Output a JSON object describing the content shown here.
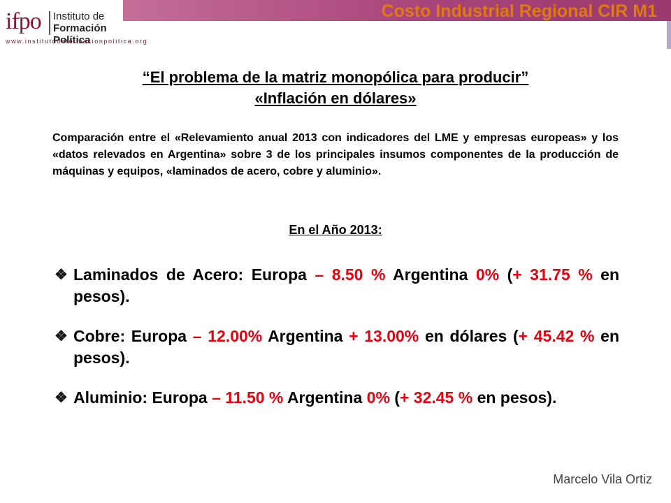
{
  "header": {
    "logo_mark": "ifpo",
    "logo_line1": "Instituto de",
    "logo_line2": "Formación Política",
    "logo_url": "www.institutodeformacionpolitica.org",
    "title": "Costo Industrial Regional CIR M1"
  },
  "slide": {
    "title_line1": "“El problema de la matriz monopólica para producir”",
    "title_line2": "«Inflación en dólares»",
    "intro": "Comparación entre el «Relevamiento anual 2013 con indicadores del LME y empresas europeas» y los «datos relevados en Argentina» sobre 3 de los principales insumos componentes de la producción de máquinas y equipos, «laminados de acero, cobre y aluminio».",
    "year_heading": "En el Año 2013:",
    "bullets": [
      {
        "a": "Laminados de Acero: Europa ",
        "b": "– 8.50 %",
        "c": " Argentina ",
        "d": "0%",
        "e": " (",
        "f": "+ 31.75 %",
        "g": " en pesos)."
      },
      {
        "a": "Cobre: Europa ",
        "b": "– 12.00%",
        "c": " Argentina ",
        "d": "+ 13.00%",
        "e": " en dólares (",
        "f": "+ 45.42 %",
        "g": " en pesos)."
      },
      {
        "a": "Aluminio: Europa ",
        "b": "– 11.50 %",
        "c": " Argentina ",
        "d": "0%",
        "e": " (",
        "f": "+ 32.45 %",
        "g": " en pesos)."
      }
    ],
    "bullet_icon": "❖",
    "author": "Marcelo Vila Ortiz"
  },
  "colors": {
    "accent_red": "#e8000d",
    "header_orange": "#e07a10",
    "header_bar": "#a8447a",
    "logo": "#8a1538"
  },
  "icons": {
    "bullet": "diamond-bullet-icon"
  }
}
